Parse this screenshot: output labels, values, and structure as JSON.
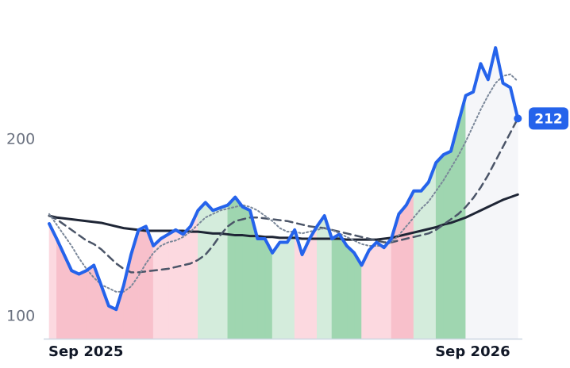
{
  "chart_data": {
    "type": "line",
    "categories": [
      "Sep 2025",
      null,
      null,
      null,
      null,
      null,
      null,
      null,
      null,
      null,
      null,
      null,
      null,
      null,
      null,
      null,
      null,
      null,
      null,
      null,
      null,
      null,
      null,
      null,
      null,
      null,
      null,
      null,
      null,
      null,
      null,
      null,
      null,
      null,
      null,
      null,
      null,
      null,
      null,
      null,
      null,
      null,
      null,
      null,
      null,
      null,
      null,
      null,
      null,
      null,
      null,
      null,
      "Sep 2026",
      null,
      null,
      null,
      null,
      null,
      null,
      null,
      null,
      null,
      null,
      null
    ],
    "ylim": [
      87.5,
      279
    ],
    "yticks": [
      100,
      200
    ],
    "grid": false,
    "shading": [
      "#fcd9e0",
      "#f8c0cb",
      "#f8c0cb",
      "#f8c0cb",
      "#f8c0cb",
      "#f8c0cb",
      "#f8c0cb",
      "#f8c0cb",
      "#f8c0cb",
      "#f8c0cb",
      "#f8c0cb",
      "#f8c0cb",
      "#f8c0cb",
      "#f8c0cb",
      "#fcd9e0",
      "#fcd9e0",
      "#fcd9e0",
      "#fcd9e0",
      "#fcd9e0",
      "#fcd9e0",
      "#d4ecdc",
      "#d4ecdc",
      "#d4ecdc",
      "#d4ecdc",
      "#9fd6b0",
      "#9fd6b0",
      "#9fd6b0",
      "#9fd6b0",
      "#9fd6b0",
      "#9fd6b0",
      "#d4ecdc",
      "#d4ecdc",
      "#d4ecdc",
      "#fcd9e0",
      "#fcd9e0",
      "#fcd9e0",
      "#d4ecdc",
      "#d4ecdc",
      "#9fd6b0",
      "#9fd6b0",
      "#9fd6b0",
      "#9fd6b0",
      "#fcd9e0",
      "#fcd9e0",
      "#fcd9e0",
      "#fcd9e0",
      "#f8c0cb",
      "#f8c0cb",
      "#f8c0cb",
      "#d4ecdc",
      "#d4ecdc",
      "#d4ecdc",
      "#9fd6b0",
      "#9fd6b0",
      "#9fd6b0",
      "#9fd6b0",
      "#f5f6f9",
      "#f5f6f9",
      "#f5f6f9",
      "#f5f6f9",
      "#f5f6f9",
      "#f5f6f9",
      "#f5f6f9",
      "#f5f6f9"
    ],
    "series": [
      {
        "color": "#2563eb",
        "dash": "solid",
        "width": 4,
        "end_label": true,
        "values": [
          152.5,
          144,
          135,
          126,
          124,
          126,
          129,
          117.5,
          106,
          104,
          117.5,
          135,
          149,
          151,
          140,
          144,
          146.5,
          149,
          146.5,
          151,
          160,
          164.5,
          160,
          161.5,
          163,
          167.5,
          162,
          160,
          144,
          144,
          136,
          142,
          142,
          149,
          135,
          144,
          151,
          157,
          144,
          146.5,
          140,
          136,
          129,
          137.5,
          142,
          139,
          144,
          158,
          163,
          171,
          171,
          176,
          187,
          191.5,
          193.5,
          209.5,
          225,
          227,
          243,
          234,
          252,
          232,
          229.5,
          212
        ]
      },
      {
        "color": "#7a8799",
        "dash": "dotted",
        "width": 2,
        "values": [
          158,
          152,
          146,
          140,
          133,
          127,
          122,
          118,
          116,
          114,
          114,
          117,
          123,
          130,
          136,
          140,
          142,
          143,
          145,
          148,
          152,
          156,
          158,
          160,
          161,
          162,
          163,
          162,
          160,
          157,
          154,
          150,
          148,
          148,
          147,
          148,
          149,
          150,
          149,
          147,
          145,
          143,
          141,
          140,
          140,
          140,
          142,
          146,
          151,
          156,
          161,
          165,
          171,
          177,
          184,
          191,
          199,
          208,
          217,
          225,
          232,
          236,
          237,
          233
        ]
      },
      {
        "color": "#4b5568",
        "dash": "dashed",
        "width": 2.5,
        "values": [
          157,
          155,
          152,
          149,
          146,
          143,
          141,
          138,
          134,
          130,
          127,
          125,
          125,
          125.5,
          126,
          126.5,
          127,
          128,
          129,
          130,
          132,
          135,
          140,
          146,
          151,
          154,
          155,
          156,
          156,
          155.5,
          155,
          154.5,
          154,
          153,
          152,
          151,
          150.5,
          150,
          149,
          148,
          147,
          146,
          145,
          144,
          143,
          142,
          142,
          143,
          144,
          145,
          146,
          147,
          149,
          152,
          155,
          158,
          162,
          167,
          173,
          180,
          188,
          196,
          204,
          212
        ]
      },
      {
        "color": "#1e2535",
        "dash": "solid",
        "width": 3,
        "values": [
          157,
          156,
          155.5,
          155,
          154.5,
          154,
          153.5,
          153,
          152,
          151,
          150,
          149.5,
          149,
          148.5,
          148.5,
          148.5,
          148.5,
          148.5,
          148.5,
          148,
          148,
          147.5,
          147,
          147,
          146.5,
          146,
          146,
          145.5,
          145.5,
          145,
          145,
          144.5,
          144.5,
          144.5,
          144,
          144,
          144,
          144,
          144,
          144,
          143.5,
          143.5,
          143.5,
          143.5,
          143.5,
          144,
          144.5,
          145.5,
          146.5,
          147.5,
          148.5,
          149.5,
          150.5,
          152,
          153,
          154.5,
          156,
          158,
          160,
          162,
          164,
          166,
          167.5,
          169
        ]
      }
    ]
  }
}
